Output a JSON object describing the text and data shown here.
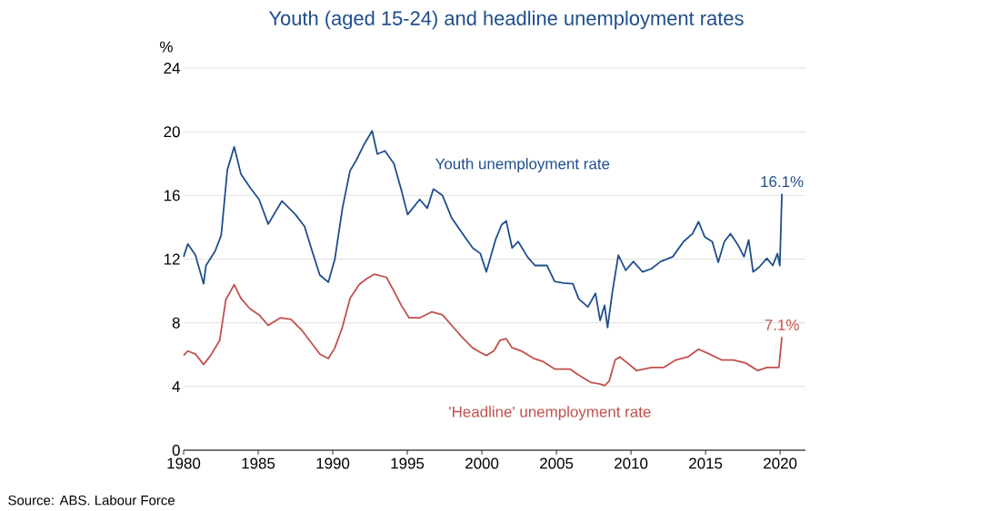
{
  "chart_data": {
    "type": "line",
    "title": "Youth (aged 15-24) and headline unemployment rates",
    "ylabel": "%",
    "xlim": [
      1980,
      2021.7
    ],
    "xticks": [
      1980,
      1985,
      1990,
      1995,
      2000,
      2005,
      2010,
      2015,
      2020
    ],
    "ylim": [
      0,
      24
    ],
    "yticks": [
      0,
      4,
      8,
      12,
      16,
      20,
      24
    ],
    "grid": "y",
    "series": [
      {
        "name": "Youth unemployment rate",
        "color": "#1f4e8c",
        "x": [
          1980.0,
          1980.28,
          1980.79,
          1981.34,
          1981.5,
          1982.11,
          1982.52,
          1982.93,
          1983.39,
          1983.84,
          1984.45,
          1985.06,
          1985.67,
          1986.59,
          1987.5,
          1988.11,
          1988.62,
          1989.13,
          1989.7,
          1990.14,
          1990.65,
          1991.16,
          1991.57,
          1992.07,
          1992.64,
          1992.99,
          1993.5,
          1994.1,
          1994.61,
          1995.02,
          1995.83,
          1996.34,
          1996.75,
          1997.36,
          1997.97,
          1998.78,
          1999.39,
          1999.9,
          2000.3,
          2000.91,
          2001.32,
          2001.63,
          2002.03,
          2002.44,
          2003.05,
          2003.56,
          2004.37,
          2004.88,
          2005.49,
          2006.1,
          2006.5,
          2007.11,
          2007.62,
          2007.93,
          2008.23,
          2008.43,
          2008.74,
          2009.15,
          2009.65,
          2010.16,
          2010.77,
          2011.38,
          2011.99,
          2012.8,
          2013.52,
          2014.13,
          2014.53,
          2014.94,
          2015.45,
          2015.85,
          2016.26,
          2016.67,
          2017.17,
          2017.58,
          2017.89,
          2018.19,
          2018.6,
          2019.11,
          2019.51,
          2019.82,
          2019.98,
          2020.12
        ],
        "values": [
          12.15,
          12.95,
          12.25,
          10.45,
          11.6,
          12.5,
          13.5,
          17.6,
          19.05,
          17.35,
          16.5,
          15.75,
          14.2,
          15.65,
          14.8,
          14.05,
          12.5,
          11.0,
          10.55,
          12.0,
          15.2,
          17.55,
          18.2,
          19.15,
          20.05,
          18.6,
          18.8,
          18.0,
          16.3,
          14.8,
          15.75,
          15.2,
          16.4,
          16.0,
          14.6,
          13.5,
          12.7,
          12.35,
          11.2,
          13.2,
          14.15,
          14.4,
          12.7,
          13.1,
          12.15,
          11.6,
          11.6,
          10.6,
          10.5,
          10.45,
          9.5,
          9.0,
          9.85,
          8.15,
          9.1,
          7.7,
          9.85,
          12.25,
          11.3,
          11.85,
          11.2,
          11.4,
          11.85,
          12.15,
          13.1,
          13.6,
          14.35,
          13.4,
          13.1,
          11.8,
          13.1,
          13.6,
          12.9,
          12.15,
          13.2,
          11.2,
          11.5,
          12.05,
          11.6,
          12.35,
          11.6,
          16.1
        ]
      },
      {
        "name": "'Headline' unemployment rate",
        "color": "#c0504d",
        "x": [
          1980.0,
          1980.28,
          1980.79,
          1981.34,
          1981.81,
          1982.42,
          1982.83,
          1983.39,
          1983.84,
          1984.45,
          1985.06,
          1985.67,
          1986.48,
          1987.2,
          1987.91,
          1988.52,
          1989.13,
          1989.7,
          1990.14,
          1990.65,
          1991.16,
          1991.77,
          1992.28,
          1992.78,
          1993.6,
          1994.1,
          1994.61,
          1995.12,
          1995.83,
          1996.65,
          1997.36,
          1998.07,
          1998.78,
          1999.39,
          1999.9,
          2000.3,
          2000.81,
          2001.22,
          2001.63,
          2002.03,
          2002.64,
          2003.46,
          2004.07,
          2004.88,
          2005.89,
          2006.5,
          2007.32,
          2007.93,
          2008.23,
          2008.54,
          2008.94,
          2009.25,
          2009.76,
          2010.37,
          2011.38,
          2012.2,
          2013.01,
          2013.82,
          2014.53,
          2015.24,
          2016.06,
          2016.87,
          2017.68,
          2018.5,
          2019.11,
          2019.92,
          2020.12
        ],
        "values": [
          5.95,
          6.23,
          6.04,
          5.38,
          5.95,
          6.9,
          9.45,
          10.4,
          9.54,
          8.88,
          8.5,
          7.84,
          8.31,
          8.22,
          7.55,
          6.8,
          6.04,
          5.76,
          6.42,
          7.74,
          9.54,
          10.4,
          10.77,
          11.05,
          10.86,
          10.0,
          9.07,
          8.31,
          8.31,
          8.69,
          8.5,
          7.74,
          6.99,
          6.42,
          6.14,
          5.95,
          6.24,
          6.91,
          7.0,
          6.43,
          6.24,
          5.77,
          5.58,
          5.1,
          5.1,
          4.72,
          4.25,
          4.15,
          4.06,
          4.34,
          5.67,
          5.86,
          5.48,
          5.0,
          5.2,
          5.2,
          5.67,
          5.86,
          6.34,
          6.05,
          5.67,
          5.67,
          5.48,
          5.0,
          5.2,
          5.2,
          7.1
        ]
      }
    ],
    "annotations": [
      {
        "text": "16.1%",
        "x": 2020.12,
        "y": 16.1
      },
      {
        "text": "7.1%",
        "x": 2020.12,
        "y": 7.1
      },
      "Source: ABS. Labour Force"
    ]
  }
}
